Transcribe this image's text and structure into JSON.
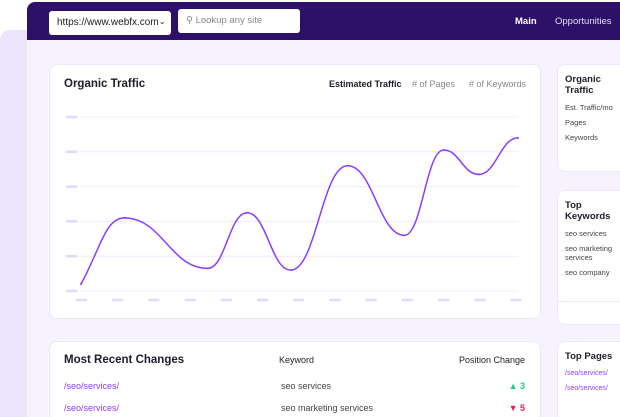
{
  "header": {
    "site_select": "https://www.webfx.com",
    "search_placeholder": "Lookup any site",
    "nav": [
      "Main",
      "Opportunities"
    ]
  },
  "traffic_card": {
    "title": "Organic Traffic",
    "tabs": [
      "Estimated Traffic",
      "# of Pages",
      "# of Keywords"
    ],
    "active_tab": "Estimated Traffic"
  },
  "summary_card": {
    "title": "Organic Traffic",
    "rows": [
      "Est. Traffic/mo",
      "Pages",
      "Keywords"
    ]
  },
  "top_keywords": {
    "title": "Top Keywords",
    "rows": [
      "seo services",
      "seo marketing services",
      "seo company"
    ]
  },
  "changes": {
    "title": "Most Recent Changes",
    "col_keyword": "Keyword",
    "col_change": "Position Change",
    "rows": [
      {
        "page": "/seo/services/",
        "keyword": "seo services",
        "change": "3",
        "direction": "up"
      },
      {
        "page": "/seo/services/",
        "keyword": "seo marketing services",
        "change": "5",
        "direction": "down"
      }
    ]
  },
  "top_pages": {
    "title": "Top Pages",
    "rows": [
      "/seo/services/",
      "/seo/services/"
    ]
  },
  "colors": {
    "header": "#2d1169",
    "accent": "#8b3dff",
    "up": "#1fcf83",
    "down": "#f0195e"
  },
  "chart_data": {
    "type": "line",
    "title": "",
    "xlabel": "",
    "ylabel": "",
    "grid": true,
    "x": [
      0,
      10,
      29,
      38,
      48,
      61,
      74,
      83,
      91,
      100
    ],
    "y": [
      4,
      42,
      13,
      45,
      12,
      72,
      32,
      81,
      67,
      88
    ],
    "ylim": [
      0,
      100
    ]
  }
}
